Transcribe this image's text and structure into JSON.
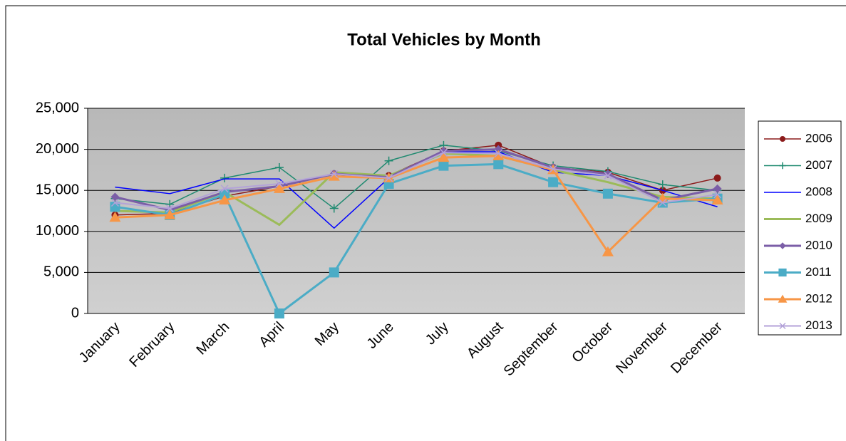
{
  "chart_data": {
    "type": "line",
    "title": "Total Vehicles by Month",
    "categories": [
      "January",
      "February",
      "March",
      "April",
      "May",
      "June",
      "July",
      "August",
      "September",
      "October",
      "November",
      "December"
    ],
    "series": [
      {
        "name": "2006",
        "color": "#8b1a1a",
        "marker": "circle",
        "width": 1.5,
        "values": [
          12000,
          12200,
          14300,
          15500,
          17000,
          16800,
          19800,
          20500,
          17800,
          17200,
          15000,
          16500
        ]
      },
      {
        "name": "2007",
        "color": "#1f8a70",
        "marker": "plus",
        "width": 1.5,
        "values": [
          14000,
          13300,
          16500,
          17800,
          12800,
          18600,
          20500,
          19800,
          18000,
          17300,
          15700,
          15000
        ]
      },
      {
        "name": "2008",
        "color": "#0000ff",
        "marker": "none",
        "width": 1.5,
        "values": [
          15400,
          14600,
          16400,
          16400,
          10400,
          16500,
          19700,
          19700,
          17200,
          16800,
          15000,
          13000
        ]
      },
      {
        "name": "2009",
        "color": "#9bbb59",
        "marker": "none",
        "width": 3,
        "values": [
          12500,
          12300,
          14800,
          10800,
          17200,
          16800,
          19500,
          19200,
          17500,
          16000,
          14200,
          14000
        ]
      },
      {
        "name": "2010",
        "color": "#7b5ea7",
        "marker": "diamond",
        "width": 3,
        "values": [
          14200,
          12600,
          14800,
          15500,
          17000,
          16600,
          19800,
          20000,
          17800,
          17000,
          13800,
          15200
        ]
      },
      {
        "name": "2011",
        "color": "#4bacc6",
        "marker": "square",
        "width": 3,
        "values": [
          13000,
          12000,
          14500,
          0,
          5000,
          15800,
          18000,
          18200,
          16000,
          14600,
          13500,
          14000
        ]
      },
      {
        "name": "2012",
        "color": "#f79646",
        "marker": "triangle",
        "width": 3,
        "values": [
          11700,
          12000,
          13800,
          15200,
          16700,
          16500,
          19000,
          19200,
          17500,
          7500,
          14000,
          13800
        ]
      },
      {
        "name": "2013",
        "color": "#b3a2d8",
        "marker": "cross",
        "width": 2,
        "values": [
          13500,
          12800,
          15200,
          15800,
          17000,
          16500,
          19600,
          19500,
          17600,
          16800,
          13500,
          14500
        ]
      }
    ],
    "ylim": [
      0,
      25000
    ],
    "yticks": [
      0,
      {
        "value": 5000,
        "label": "5,000"
      },
      {
        "value": 10000,
        "label": "10,000"
      },
      {
        "value": 15000,
        "label": "15,000"
      },
      {
        "value": 20000,
        "label": "20,000"
      },
      {
        "value": 25000,
        "label": "25,000"
      }
    ],
    "grid": true,
    "legend": "right"
  }
}
